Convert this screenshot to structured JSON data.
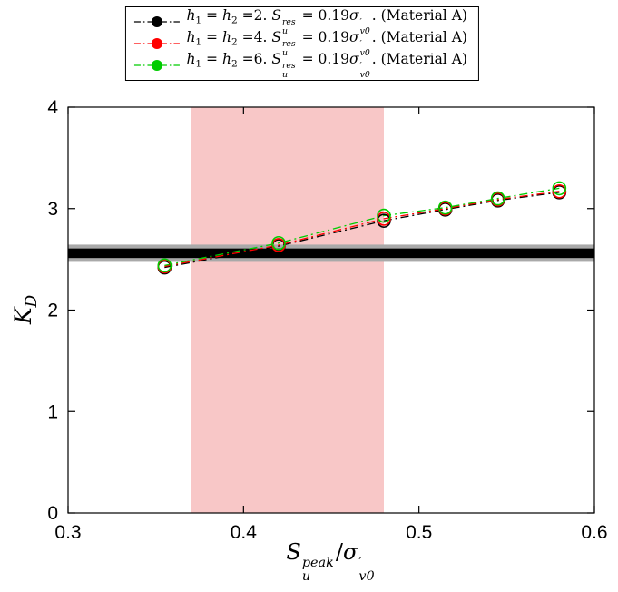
{
  "figure": {
    "background": "#ffffff",
    "frame_color": "#000000"
  },
  "chart_data": {
    "type": "line",
    "title": "",
    "xlabel": "S_u^peak / sigma'_v0",
    "ylabel": "K_D",
    "xlim": [
      0.3,
      0.6
    ],
    "ylim": [
      0,
      4
    ],
    "xticks": [
      0.3,
      0.4,
      0.5,
      0.6
    ],
    "xtick_labels": [
      "0.3",
      "0.4",
      "0.5",
      "0.6"
    ],
    "yticks": [
      0,
      1,
      2,
      3,
      4
    ],
    "ytick_labels": [
      "0",
      "1",
      "2",
      "3",
      "4"
    ],
    "grid": false,
    "legend_position": "top-outside-boxed",
    "line_style": "dash-dot",
    "marker": "open-circle",
    "x": [
      0.355,
      0.42,
      0.48,
      0.515,
      0.545,
      0.58
    ],
    "series": [
      {
        "name": "h1 = h2 =2. Su_res = 0.19 sigma'_v0. (Material A)",
        "color": "#000000",
        "y": [
          2.42,
          2.63,
          2.88,
          2.99,
          3.08,
          3.16
        ]
      },
      {
        "name": "h1 = h2 =4. Su_res = 0.19 sigma'_v0. (Material A)",
        "color": "#ff0000",
        "y": [
          2.43,
          2.64,
          2.9,
          3.0,
          3.09,
          3.17
        ]
      },
      {
        "name": "h1 = h2 =6. Su_res = 0.19 sigma'_v0. (Material A)",
        "color": "#00cc00",
        "y": [
          2.44,
          2.66,
          2.93,
          3.01,
          3.1,
          3.2
        ]
      }
    ],
    "shaded_band_x": {
      "from": 0.37,
      "to": 0.48,
      "color": "#f8c7c7"
    },
    "reference_band_y": {
      "center": 2.56,
      "core_half": 0.047,
      "halo_half": 0.085,
      "core_color": "#000000",
      "halo_color": "#a9a9a9"
    }
  },
  "legend": {
    "items": [
      {
        "color": "#000000",
        "segments": [
          {
            "t": "h",
            "i": true
          },
          {
            "t": "1",
            "sub": true
          },
          {
            "t": " = "
          },
          {
            "t": "h",
            "i": true
          },
          {
            "t": "2",
            "sub": true
          },
          {
            "t": " ="
          },
          {
            "t": "2"
          },
          {
            "t": ". "
          },
          {
            "t": "S",
            "i": true
          },
          {
            "stack": {
              "sup": "res",
              "sub": "u"
            }
          },
          {
            "t": " = 0.19"
          },
          {
            "t": "σ",
            "i": true
          },
          {
            "stack": {
              "sup": "′",
              "sub": "v0"
            }
          },
          {
            "t": ". (Material A)"
          }
        ]
      },
      {
        "color": "#ff0000",
        "segments": [
          {
            "t": "h",
            "i": true
          },
          {
            "t": "1",
            "sub": true
          },
          {
            "t": " = "
          },
          {
            "t": "h",
            "i": true
          },
          {
            "t": "2",
            "sub": true
          },
          {
            "t": " ="
          },
          {
            "t": "4"
          },
          {
            "t": ". "
          },
          {
            "t": "S",
            "i": true
          },
          {
            "stack": {
              "sup": "res",
              "sub": "u"
            }
          },
          {
            "t": " = 0.19"
          },
          {
            "t": "σ",
            "i": true
          },
          {
            "stack": {
              "sup": "′",
              "sub": "v0"
            }
          },
          {
            "t": ". (Material A)"
          }
        ]
      },
      {
        "color": "#00cc00",
        "segments": [
          {
            "t": "h",
            "i": true
          },
          {
            "t": "1",
            "sub": true
          },
          {
            "t": " = "
          },
          {
            "t": "h",
            "i": true
          },
          {
            "t": "2",
            "sub": true
          },
          {
            "t": " ="
          },
          {
            "t": "6"
          },
          {
            "t": ". "
          },
          {
            "t": "S",
            "i": true
          },
          {
            "stack": {
              "sup": "res",
              "sub": "u"
            }
          },
          {
            "t": " = 0.19"
          },
          {
            "t": "σ",
            "i": true
          },
          {
            "stack": {
              "sup": "′",
              "sub": "v0"
            }
          },
          {
            "t": ". (Material A)"
          }
        ]
      }
    ]
  },
  "labels": {
    "xlabel_segments": [
      {
        "t": "S",
        "i": true
      },
      {
        "stack": {
          "sup": "peak",
          "sub": "u"
        }
      },
      {
        "t": "/"
      },
      {
        "t": "σ",
        "i": true
      },
      {
        "stack": {
          "sup": "′",
          "sub": "v0"
        }
      }
    ],
    "ylabel_segments": [
      {
        "t": "K",
        "i": true
      },
      {
        "t": "D",
        "sub": true,
        "i": true
      }
    ]
  }
}
